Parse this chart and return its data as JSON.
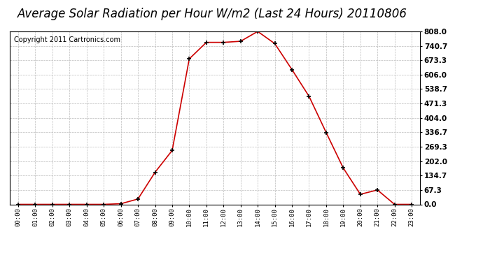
{
  "title": "Average Solar Radiation per Hour W/m2 (Last 24 Hours) 20110806",
  "copyright": "Copyright 2011 Cartronics.com",
  "x_labels": [
    "00:00",
    "01:00",
    "02:00",
    "03:00",
    "04:00",
    "05:00",
    "06:00",
    "07:00",
    "08:00",
    "09:00",
    "10:00",
    "11:00",
    "12:00",
    "13:00",
    "14:00",
    "15:00",
    "16:00",
    "17:00",
    "18:00",
    "19:00",
    "20:00",
    "21:00",
    "22:00",
    "23:00"
  ],
  "y_values": [
    0.0,
    0.0,
    0.0,
    0.0,
    0.0,
    0.0,
    3.0,
    25.0,
    150.0,
    252.0,
    680.0,
    757.0,
    757.0,
    762.0,
    808.0,
    751.0,
    630.0,
    505.0,
    336.0,
    170.0,
    47.0,
    67.3,
    0.0,
    0.0
  ],
  "line_color": "#cc0000",
  "marker_color": "#000000",
  "bg_color": "#ffffff",
  "grid_color": "#bbbbbb",
  "yticks": [
    0.0,
    67.3,
    134.7,
    202.0,
    269.3,
    336.7,
    404.0,
    471.3,
    538.7,
    606.0,
    673.3,
    740.7,
    808.0
  ],
  "ymax": 808.0,
  "ymin": 0.0,
  "title_fontsize": 12,
  "copyright_fontsize": 7
}
